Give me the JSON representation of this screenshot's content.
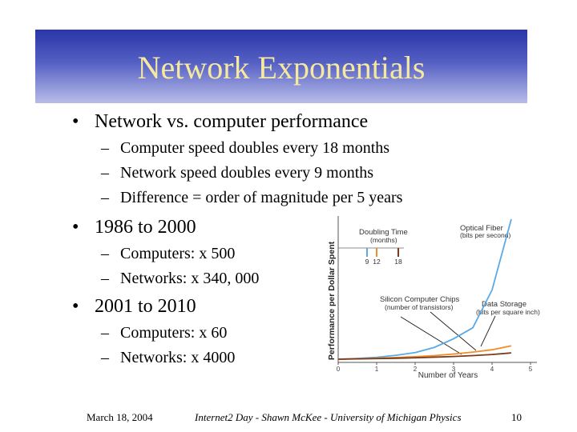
{
  "slide": {
    "title": "Network Exponentials",
    "bullets": [
      {
        "text": "Network vs. computer performance",
        "subs": [
          "Computer speed doubles every 18 months",
          "Network speed doubles every 9 months",
          "Difference = order of magnitude per 5 years"
        ]
      },
      {
        "text": "1986 to 2000",
        "subs": [
          "Computers: x 500",
          "Networks: x 340, 000"
        ]
      },
      {
        "text": "2001 to 2010",
        "subs": [
          "Computers: x 60",
          "Networks: x 4000"
        ]
      }
    ],
    "bullet_glyph": "•",
    "dash_glyph": "–"
  },
  "footer": {
    "date": "March 18, 2004",
    "center": "Internet2 Day - Shawn McKee - University of Michigan Physics",
    "page": "10"
  },
  "chart_data": {
    "type": "line",
    "ylabel": "Performance per Dollar Spent",
    "xlabel": "Number of Years",
    "x_ticks": [
      "0",
      "1",
      "2",
      "3",
      "4",
      "5"
    ],
    "xlim": [
      0,
      5
    ],
    "doubling_time": {
      "title": "Doubling Time",
      "unit": "(months)",
      "ticks": [
        "9",
        "12",
        "18"
      ]
    },
    "series": [
      {
        "name": "Optical Fiber",
        "unit": "(bits per second)",
        "color": "#5aa9e6",
        "x": [
          0,
          0.5,
          1,
          1.5,
          2,
          2.5,
          3,
          3.5,
          4,
          4.5
        ],
        "y": [
          1,
          1.47,
          2.2,
          3.5,
          5.2,
          8.5,
          14,
          21,
          45,
          90
        ]
      },
      {
        "name": "Data Storage",
        "unit": "(bits per square inch)",
        "color": "#f28c28",
        "x": [
          0,
          0.5,
          1,
          1.5,
          2,
          2.5,
          3,
          3.5,
          4,
          4.5
        ],
        "y": [
          1,
          1.3,
          1.6,
          2.1,
          2.6,
          3.3,
          4.3,
          5.5,
          7,
          9.5
        ]
      },
      {
        "name": "Silicon Computer Chips",
        "unit": "(number of transistors)",
        "color": "#7a3b1a",
        "x": [
          0,
          0.5,
          1,
          1.5,
          2,
          2.5,
          3,
          3.5,
          4,
          4.5
        ],
        "y": [
          1,
          1.2,
          1.4,
          1.6,
          1.9,
          2.3,
          2.7,
          3.3,
          4,
          5
        ]
      }
    ]
  }
}
